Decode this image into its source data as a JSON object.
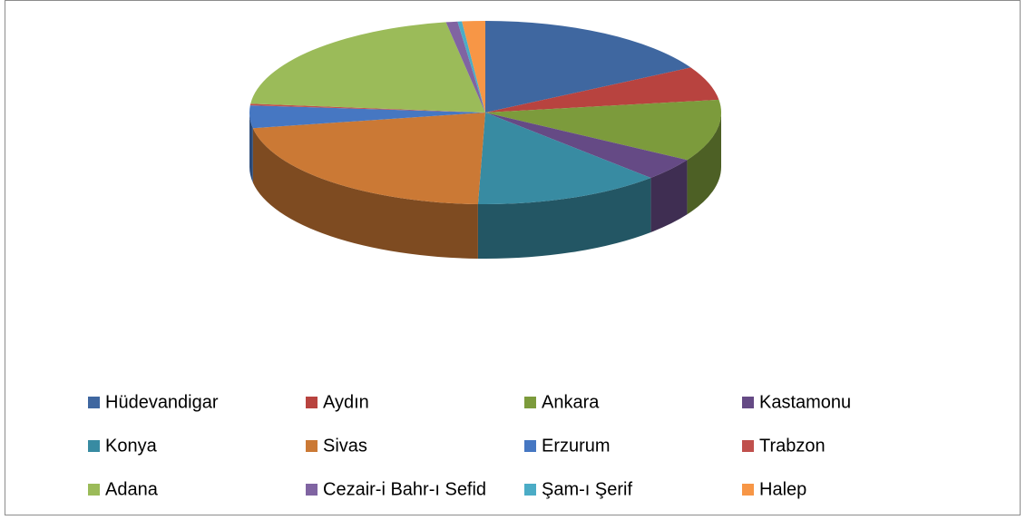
{
  "chart_data": {
    "type": "pie3d",
    "categories": [
      "Hüdevandigar",
      "Aydın",
      "Ankara",
      "Kastamonu",
      "Konya",
      "Sivas",
      "Erzurum",
      "Trabzon",
      "Adana",
      "Cezair-i Bahr-ı Sefid",
      "Şam-ı Şerif",
      "Halep"
    ],
    "values": [
      17,
      6,
      11,
      4,
      13,
      22,
      4,
      0.3,
      21,
      0.8,
      0.3,
      1.6
    ],
    "colors": [
      "#3f67a0",
      "#b8433f",
      "#7c9b3c",
      "#654a85",
      "#388ba2",
      "#cb7935",
      "#4677c2",
      "#c0504d",
      "#9bbb59",
      "#8064a2",
      "#4bacc6",
      "#f79646"
    ]
  }
}
